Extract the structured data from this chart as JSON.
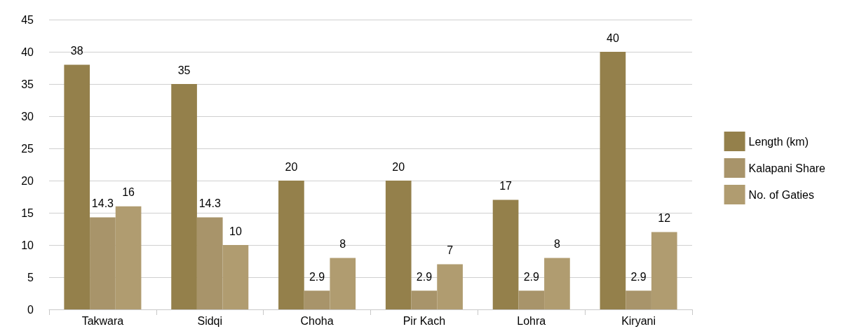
{
  "chart_data": {
    "type": "bar",
    "categories": [
      "Takwara",
      "Sidqi",
      "Choha",
      "Pir Kach",
      "Lohra",
      "Kiryani"
    ],
    "series": [
      {
        "name": "Length (km)",
        "color": "#94804b",
        "values": [
          38,
          35,
          20,
          20,
          17,
          40
        ]
      },
      {
        "name": "Kalapani Share",
        "color": "#a8946a",
        "values": [
          14.3,
          14.3,
          2.9,
          2.9,
          2.9,
          2.9
        ]
      },
      {
        "name": "No. of Gaties",
        "color": "#b09c70",
        "values": [
          16,
          10,
          8,
          7,
          8,
          12
        ]
      }
    ],
    "ylim": [
      0,
      45
    ],
    "yticks": [
      0,
      5,
      10,
      15,
      20,
      25,
      30,
      35,
      40,
      45
    ],
    "grid": "y",
    "legend": "right",
    "data_labels": true
  }
}
